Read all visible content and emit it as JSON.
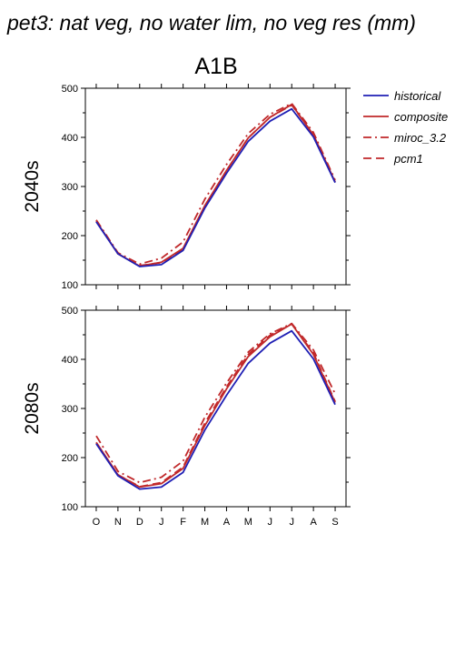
{
  "figure_title": "pet3: nat veg, no water lim, no veg res (mm)",
  "scenario": "A1B",
  "colors": {
    "historical": "#1f1fb4",
    "composite": "#c0282a",
    "miroc_3.2": "#c0282a",
    "pcm1": "#c0282a"
  },
  "legend": [
    {
      "name": "historical",
      "style": "solid",
      "color": "#1f1fb4"
    },
    {
      "name": "composite",
      "style": "solid",
      "color": "#c0282a"
    },
    {
      "name": "miroc_3.2",
      "style": "dashdot",
      "color": "#c0282a"
    },
    {
      "name": "pcm1",
      "style": "dashed",
      "color": "#c0282a"
    }
  ],
  "chart_data": [
    {
      "type": "line",
      "ylabel": "2040s",
      "categories": [
        "O",
        "N",
        "D",
        "J",
        "F",
        "M",
        "A",
        "M",
        "J",
        "J",
        "A",
        "S"
      ],
      "ylim": [
        100,
        500
      ],
      "yticks": [
        100,
        200,
        300,
        400,
        500
      ],
      "series": [
        {
          "name": "historical",
          "values": [
            228,
            163,
            137,
            141,
            170,
            256,
            327,
            392,
            433,
            458,
            401,
            308
          ]
        },
        {
          "name": "composite",
          "values": [
            229,
            163,
            138,
            146,
            174,
            261,
            333,
            399,
            441,
            467,
            405,
            309
          ]
        },
        {
          "name": "miroc_3.2",
          "values": [
            232,
            165,
            142,
            154,
            187,
            274,
            345,
            408,
            447,
            469,
            410,
            313
          ]
        },
        {
          "name": "pcm1",
          "values": [
            229,
            163,
            139,
            145,
            173,
            260,
            333,
            399,
            441,
            466,
            405,
            309
          ]
        }
      ]
    },
    {
      "type": "line",
      "ylabel": "2080s",
      "categories": [
        "O",
        "N",
        "D",
        "J",
        "F",
        "M",
        "A",
        "M",
        "J",
        "J",
        "A",
        "S"
      ],
      "ylim": [
        100,
        500
      ],
      "yticks": [
        100,
        200,
        300,
        400,
        500
      ],
      "series": [
        {
          "name": "historical",
          "values": [
            228,
            163,
            136,
            140,
            170,
            256,
            327,
            392,
            433,
            458,
            401,
            308
          ]
        },
        {
          "name": "composite",
          "values": [
            231,
            165,
            140,
            147,
            178,
            265,
            340,
            406,
            446,
            472,
            410,
            312
          ]
        },
        {
          "name": "miroc_3.2",
          "values": [
            244,
            172,
            149,
            160,
            193,
            282,
            352,
            415,
            452,
            473,
            419,
            330
          ]
        },
        {
          "name": "pcm1",
          "values": [
            230,
            165,
            141,
            149,
            181,
            270,
            344,
            410,
            449,
            472,
            413,
            314
          ]
        }
      ]
    }
  ]
}
